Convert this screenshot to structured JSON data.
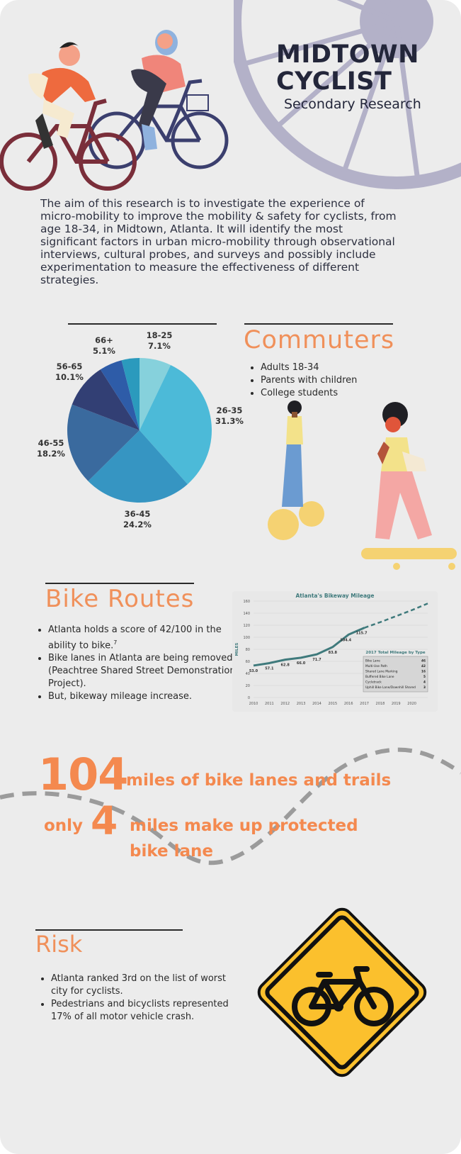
{
  "header": {
    "title_line1": "MIDTOWN",
    "title_line2": "CYCLIST",
    "subtitle": "Secondary Research"
  },
  "intro": "The aim of this research is to investigate the experience of micro-mobility to improve the mobility & safety for cyclists, from age 18-34, in Midtown, Atlanta. It will identify the most significant factors in urban micro-mobility through observational interviews, cultural probes, and surveys and possibly include experimentation to measure the effectiveness of different strategies.",
  "age_pie": {
    "slices": [
      {
        "name": "18-25",
        "pct": "7.1%",
        "value": 7.1,
        "color": "#86d1dc"
      },
      {
        "name": "26-35",
        "pct": "31.3%",
        "value": 31.3,
        "color": "#4cbad8"
      },
      {
        "name": "36-45",
        "pct": "24.2%",
        "value": 24.2,
        "color": "#3695c2"
      },
      {
        "name": "46-55",
        "pct": "18.2%",
        "value": 18.2,
        "color": "#3a6a9e"
      },
      {
        "name": "56-65",
        "pct": "10.1%",
        "value": 10.1,
        "color": "#323f74"
      },
      {
        "name": "66+",
        "pct": "5.1%",
        "value": 5.1,
        "color": "#2e5ca8"
      },
      {
        "name": "",
        "pct": "",
        "value": 4.0,
        "color": "#2b9abd"
      }
    ]
  },
  "commuters": {
    "heading": "Commuters",
    "items": [
      "Adults 18-34",
      "Parents with children",
      "College students"
    ]
  },
  "bike_routes": {
    "heading": "Bike Routes",
    "items": [
      "Atlanta holds a score of 42/100 in the ability to bike.",
      "Bike lanes in Atlanta are being removed (Peachtree Shared Street Demonstration Project).",
      "But, bikeway mileage increase."
    ],
    "footnote": "7"
  },
  "chart_data": {
    "type": "line",
    "title": "Atlanta's Bikeway Mileage",
    "ylabel": "MILES",
    "xlabel": "",
    "x": [
      2010,
      2011,
      2012,
      2013,
      2014,
      2015,
      2016,
      2017
    ],
    "values": [
      53.0,
      57.1,
      62.8,
      66.0,
      71.7,
      83.8,
      104.4,
      115.7
    ],
    "projection_x": [
      2017,
      2018,
      2019,
      2020,
      2021
    ],
    "projection_values": [
      115.7,
      125,
      135,
      145,
      156
    ],
    "ylim": [
      0,
      160
    ],
    "yticks": [
      0,
      20,
      40,
      60,
      80,
      100,
      120,
      140,
      160
    ],
    "xticks": [
      2010,
      2011,
      2012,
      2013,
      2014,
      2015,
      2016,
      2017,
      2018,
      2019,
      2020
    ],
    "legend_title": "2017 Total Mileage by Type",
    "legend_rows": [
      {
        "label": "Bike Lane",
        "value": "46"
      },
      {
        "label": "Multi-Use Path",
        "value": "42"
      },
      {
        "label": "Shared Lane Marking",
        "value": "16"
      },
      {
        "label": "Buffered Bike Lane",
        "value": "5"
      },
      {
        "label": "Cycletrack",
        "value": "4"
      },
      {
        "label": "Uphill Bike Lane/Downhill Shared",
        "value": "3"
      }
    ],
    "line_color": "#3f7a7c",
    "grid": true
  },
  "stats": {
    "number1": "104",
    "text1": "miles of bike lanes and trails",
    "prefix2": "only",
    "number2": "4",
    "text2_line1": "miles make up protected",
    "text2_line2": "bike lane"
  },
  "risk": {
    "heading": "Risk",
    "items": [
      "Atlanta ranked 3rd  on the list of worst city for cyclists.",
      "Pedestrians and bicyclists represented 17% of all motor vehicle crash."
    ]
  },
  "colors": {
    "accent": "#f4894f",
    "wheel": "#b3b1c8",
    "sign": "#fbc02d"
  }
}
